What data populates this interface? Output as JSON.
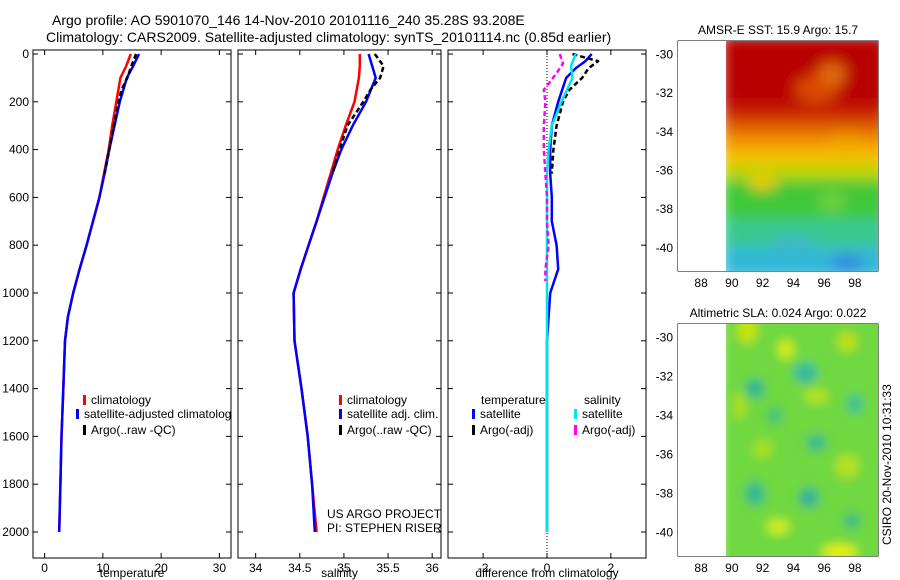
{
  "header": {
    "title_line1": "Argo profile: AO 5901070_146 14-Nov-2010 20101116_240 35.28S 93.208E",
    "title_line2": "Climatology: CARS2009. Satellite-adjusted climatology: synTS_20101114.nc (0.85d earlier)"
  },
  "stamp": "CSIRO 20-Nov-2010 10:31:33",
  "colors": {
    "climatology": "#ff0000",
    "satellite": "#0000ff",
    "argo": "#000000",
    "sal_satellite": "#00e5e5",
    "sal_argo": "#ff00ff",
    "panel_bg": "#ffffff"
  },
  "chart_data": [
    {
      "type": "line",
      "id": "temperature",
      "xlabel": "temperature",
      "ylabel": "",
      "xlim": [
        -2,
        32
      ],
      "ylim": [
        2050,
        0
      ],
      "xticks": [
        0,
        10,
        20,
        30
      ],
      "yticks": [
        0,
        200,
        400,
        600,
        800,
        1000,
        1200,
        1400,
        1600,
        1800,
        2000
      ],
      "series": [
        {
          "name": "climatology",
          "color": "#ff0000",
          "dash": "",
          "depth": [
            0,
            50,
            100,
            200,
            300,
            400,
            500,
            600,
            700,
            800,
            900,
            1000,
            1100,
            1200,
            1400,
            1600,
            1800,
            2000
          ],
          "values": [
            14.8,
            14.0,
            13.0,
            12.3,
            11.6,
            11.0,
            10.2,
            9.4,
            8.3,
            7.2,
            6.0,
            4.9,
            4.0,
            3.5,
            3.2,
            2.9,
            2.7,
            2.5
          ]
        },
        {
          "name": "satellite-adjusted climatology",
          "color": "#0000ff",
          "dash": "",
          "depth": [
            0,
            50,
            100,
            200,
            300,
            400,
            500,
            600,
            700,
            800,
            900,
            1000,
            1100,
            1200,
            1400,
            1600,
            1800,
            2000
          ],
          "values": [
            16.2,
            15.2,
            14.1,
            12.9,
            12.0,
            11.1,
            10.3,
            9.4,
            8.3,
            7.2,
            6.0,
            4.9,
            4.0,
            3.5,
            3.2,
            2.9,
            2.7,
            2.5
          ]
        },
        {
          "name": "Argo(..raw -QC)",
          "color": "#000000",
          "dash": "5,3",
          "depth": [
            0,
            50,
            100,
            150,
            200,
            300,
            400,
            500
          ],
          "values": [
            15.7,
            14.9,
            14.2,
            13.2,
            12.7,
            11.9,
            11.1,
            10.3
          ]
        }
      ],
      "legend": {
        "position": "lower-left",
        "entries": [
          "climatology",
          "satellite-adjusted climatolog",
          "Argo(..raw -QC)"
        ]
      }
    },
    {
      "type": "line",
      "id": "salinity",
      "xlabel": "salinity",
      "ylabel": "",
      "xlim": [
        33.8,
        36.1
      ],
      "ylim": [
        2050,
        0
      ],
      "xticks": [
        34,
        34.5,
        35,
        35.5,
        36
      ],
      "yticks": [],
      "series": [
        {
          "name": "climatology",
          "color": "#ff0000",
          "dash": "",
          "depth": [
            0,
            50,
            100,
            200,
            300,
            400,
            500,
            600,
            700,
            800,
            900,
            1000,
            1200,
            1400,
            1600,
            1800,
            2000
          ],
          "values": [
            35.18,
            35.18,
            35.17,
            35.12,
            35.02,
            34.93,
            34.85,
            34.77,
            34.69,
            34.6,
            34.51,
            34.43,
            34.44,
            34.52,
            34.59,
            34.64,
            34.69
          ]
        },
        {
          "name": "satellite adj. clim.",
          "color": "#0000ff",
          "dash": "",
          "depth": [
            0,
            50,
            100,
            200,
            300,
            400,
            500,
            600,
            700,
            800,
            900,
            1000,
            1200,
            1400,
            1600,
            1800,
            2000
          ],
          "values": [
            35.28,
            35.32,
            35.36,
            35.25,
            35.1,
            34.97,
            34.87,
            34.78,
            34.69,
            34.6,
            34.51,
            34.43,
            34.44,
            34.52,
            34.59,
            34.64,
            34.67
          ]
        },
        {
          "name": "Argo(..raw -QC)",
          "color": "#000000",
          "dash": "5,3",
          "depth": [
            0,
            50,
            100,
            150,
            200,
            300,
            400,
            500
          ],
          "values": [
            35.35,
            35.45,
            35.41,
            35.3,
            35.22,
            35.04,
            34.95,
            34.87
          ]
        }
      ],
      "legend": {
        "position": "lower-left",
        "entries": [
          "climatology",
          "satellite adj. clim.",
          "Argo(..raw -QC)"
        ]
      },
      "annotation": [
        "US ARGO PROJECT",
        "PI: STEPHEN RISER"
      ]
    },
    {
      "type": "line",
      "id": "difference",
      "xlabel": "difference from climatology",
      "ylabel": "",
      "xlim": [
        -3.1,
        3.1
      ],
      "ylim": [
        2050,
        0
      ],
      "xticks": [
        -2,
        0,
        2
      ],
      "yticks": [],
      "series": [
        {
          "name": "temperature satellite",
          "color": "#0000ff",
          "dash": "",
          "depth": [
            0,
            30,
            60,
            100,
            200,
            300,
            400,
            500,
            600,
            700,
            800,
            900,
            1000,
            1100,
            1200,
            1400,
            1600,
            1800,
            2000
          ],
          "values": [
            1.4,
            1.2,
            0.9,
            0.6,
            0.35,
            0.15,
            0.1,
            0.1,
            0.15,
            0.15,
            0.3,
            0.35,
            0.1,
            0.05,
            0.0,
            0.0,
            0.0,
            0.0,
            0.0
          ]
        },
        {
          "name": "temperature Argo(-adj)",
          "color": "#000000",
          "dash": "5,3",
          "depth": [
            0,
            30,
            60,
            100,
            150,
            200,
            300,
            400,
            500
          ],
          "values": [
            0.8,
            1.6,
            1.3,
            1.1,
            0.7,
            0.5,
            0.3,
            0.2,
            0.15
          ]
        },
        {
          "name": "salinity satellite",
          "color": "#00e5e5",
          "dash": "",
          "depth": [
            0,
            50,
            100,
            200,
            300,
            400,
            500,
            600,
            800,
            1000,
            1200,
            1400,
            1600,
            1800,
            2000
          ],
          "values": [
            0.9,
            0.75,
            0.8,
            0.45,
            0.15,
            0.05,
            0.0,
            0.0,
            0.0,
            0.0,
            0.0,
            0.0,
            0.0,
            0.0,
            0.0
          ]
        },
        {
          "name": "salinity Argo(-adj)",
          "color": "#ff00ff",
          "dash": "5,3",
          "depth": [
            0,
            40,
            80,
            150,
            200,
            300,
            400,
            500,
            600,
            700,
            800,
            900,
            950
          ],
          "values": [
            0.4,
            0.5,
            0.3,
            -0.1,
            -0.05,
            -0.1,
            -0.1,
            -0.05,
            0.0,
            0.0,
            0.05,
            -0.05,
            -0.05
          ]
        }
      ],
      "legend": {
        "position": "lower-center",
        "col1_title": "temperature",
        "col2_title": "salinity",
        "col1": [
          "satellite",
          "Argo(-adj)"
        ],
        "col2": [
          "satellite",
          "Argo(-adj)"
        ]
      }
    },
    {
      "type": "heatmap",
      "id": "sst-map",
      "title": "AMSR-E SST: 15.9 Argo: 15.7",
      "xlim": [
        86.5,
        99.5
      ],
      "ylim": [
        -41.2,
        -29.3
      ],
      "xticks": [
        88,
        90,
        92,
        94,
        96,
        98
      ],
      "yticks": [
        -30,
        -32,
        -34,
        -36,
        -38,
        -40
      ],
      "data_extent": {
        "lon": [
          90,
          99.5
        ],
        "lat": [
          -41.2,
          -29.3
        ]
      },
      "marker": {
        "lon": 93.2,
        "lat": -35.28
      },
      "description_values": "warm (red) north of 33S, orange/yellow front near 34-35S, green to cyan south of 37S"
    },
    {
      "type": "heatmap",
      "id": "sla-map",
      "title": "Altimetric SLA: 0.024 Argo: 0.022",
      "xlim": [
        86.5,
        99.5
      ],
      "ylim": [
        -41.2,
        -29.3
      ],
      "xticks": [
        88,
        90,
        92,
        94,
        96,
        98
      ],
      "yticks": [
        -30,
        -32,
        -34,
        -36,
        -38,
        -40
      ],
      "data_extent": {
        "lon": [
          90,
          99.5
        ],
        "lat": [
          -41.2,
          -29.3
        ]
      },
      "marker": {
        "lon": 93.2,
        "lat": -35.28
      }
    }
  ]
}
